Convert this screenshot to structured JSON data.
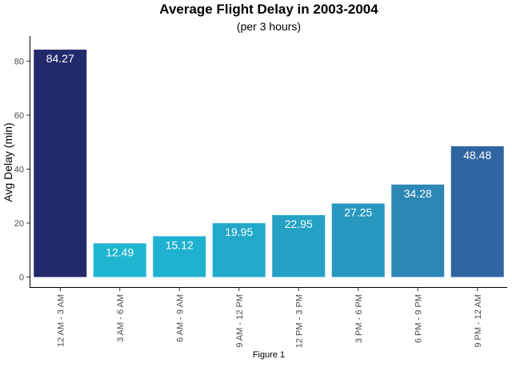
{
  "chart_data": {
    "type": "bar",
    "title": "Average Flight Delay in 2003-2004",
    "subtitle": "(per 3 hours)",
    "xlabel": "",
    "ylabel": "Avg Delay (min)",
    "caption": "Figure 1",
    "categories": [
      "12 AM - 3 AM",
      "3 AM - 6 AM",
      "6 AM - 9 AM",
      "9 AM - 12 PM",
      "12 PM - 3 PM",
      "3 PM - 6 PM",
      "6 PM - 9 PM",
      "9 PM - 12 AM"
    ],
    "values": [
      84.27,
      12.49,
      15.12,
      19.95,
      22.95,
      27.25,
      34.28,
      48.48
    ],
    "data_labels": [
      "84.27",
      "12.49",
      "15.12",
      "19.95",
      "22.95",
      "27.25",
      "34.28",
      "48.48"
    ],
    "colors": [
      "#222a6b",
      "#1fb6d2",
      "#1fb1cf",
      "#22a8c9",
      "#24a1c4",
      "#2998c0",
      "#2d87b4",
      "#2f66a1"
    ],
    "y_ticks": [
      0,
      20,
      40,
      60,
      80
    ],
    "y_tick_labels": [
      "0",
      "20",
      "40",
      "60",
      "80"
    ],
    "ylim": [
      0,
      88.9
    ],
    "grid": false,
    "legend": "none"
  }
}
